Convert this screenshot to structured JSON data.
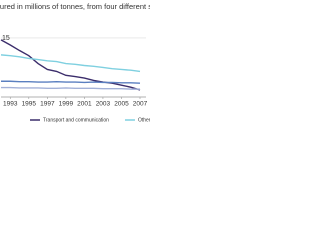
{
  "chart_data": {
    "type": "line",
    "title": "asured in millions of tonnes, from four different sect",
    "x": [
      1992,
      1993,
      1994,
      1995,
      1996,
      1997,
      1998,
      1999,
      2000,
      2001,
      2002,
      2003,
      2004,
      2005,
      2006,
      2007
    ],
    "xlim": [
      1992,
      2007
    ],
    "xticks": [
      1993,
      1995,
      1997,
      1999,
      2001,
      2003,
      2005,
      2007
    ],
    "ylim": [
      0,
      16
    ],
    "yticks": [
      15
    ],
    "grid": true,
    "series": [
      {
        "name": "Transport and communication",
        "color": "#3b2d6b",
        "values": [
          14.5,
          13.2,
          11.8,
          10.5,
          8.5,
          7,
          6.5,
          5.5,
          5.2,
          4.8,
          4.2,
          3.8,
          3.5,
          3,
          2.5,
          1.8
        ]
      },
      {
        "name": "Other industries",
        "color": "#7fd0e0",
        "values": [
          10.7,
          10.5,
          10.2,
          9.8,
          9.5,
          9.2,
          9,
          8.5,
          8.3,
          8,
          7.8,
          7.5,
          7.2,
          7,
          6.8,
          6.5
        ]
      },
      {
        "color": "#5a7fc0",
        "values": [
          4,
          4,
          3.9,
          3.9,
          3.8,
          3.8,
          3.9,
          3.8,
          3.8,
          3.7,
          3.8,
          3.7,
          3.7,
          3.6,
          3.6,
          3.5
        ]
      },
      {
        "color": "#a3b1d8",
        "values": [
          2.4,
          2.4,
          2.3,
          2.3,
          2.3,
          2.2,
          2.2,
          2.3,
          2.2,
          2.2,
          2.2,
          2.1,
          2.1,
          2.1,
          2.0,
          2.0
        ]
      }
    ]
  }
}
